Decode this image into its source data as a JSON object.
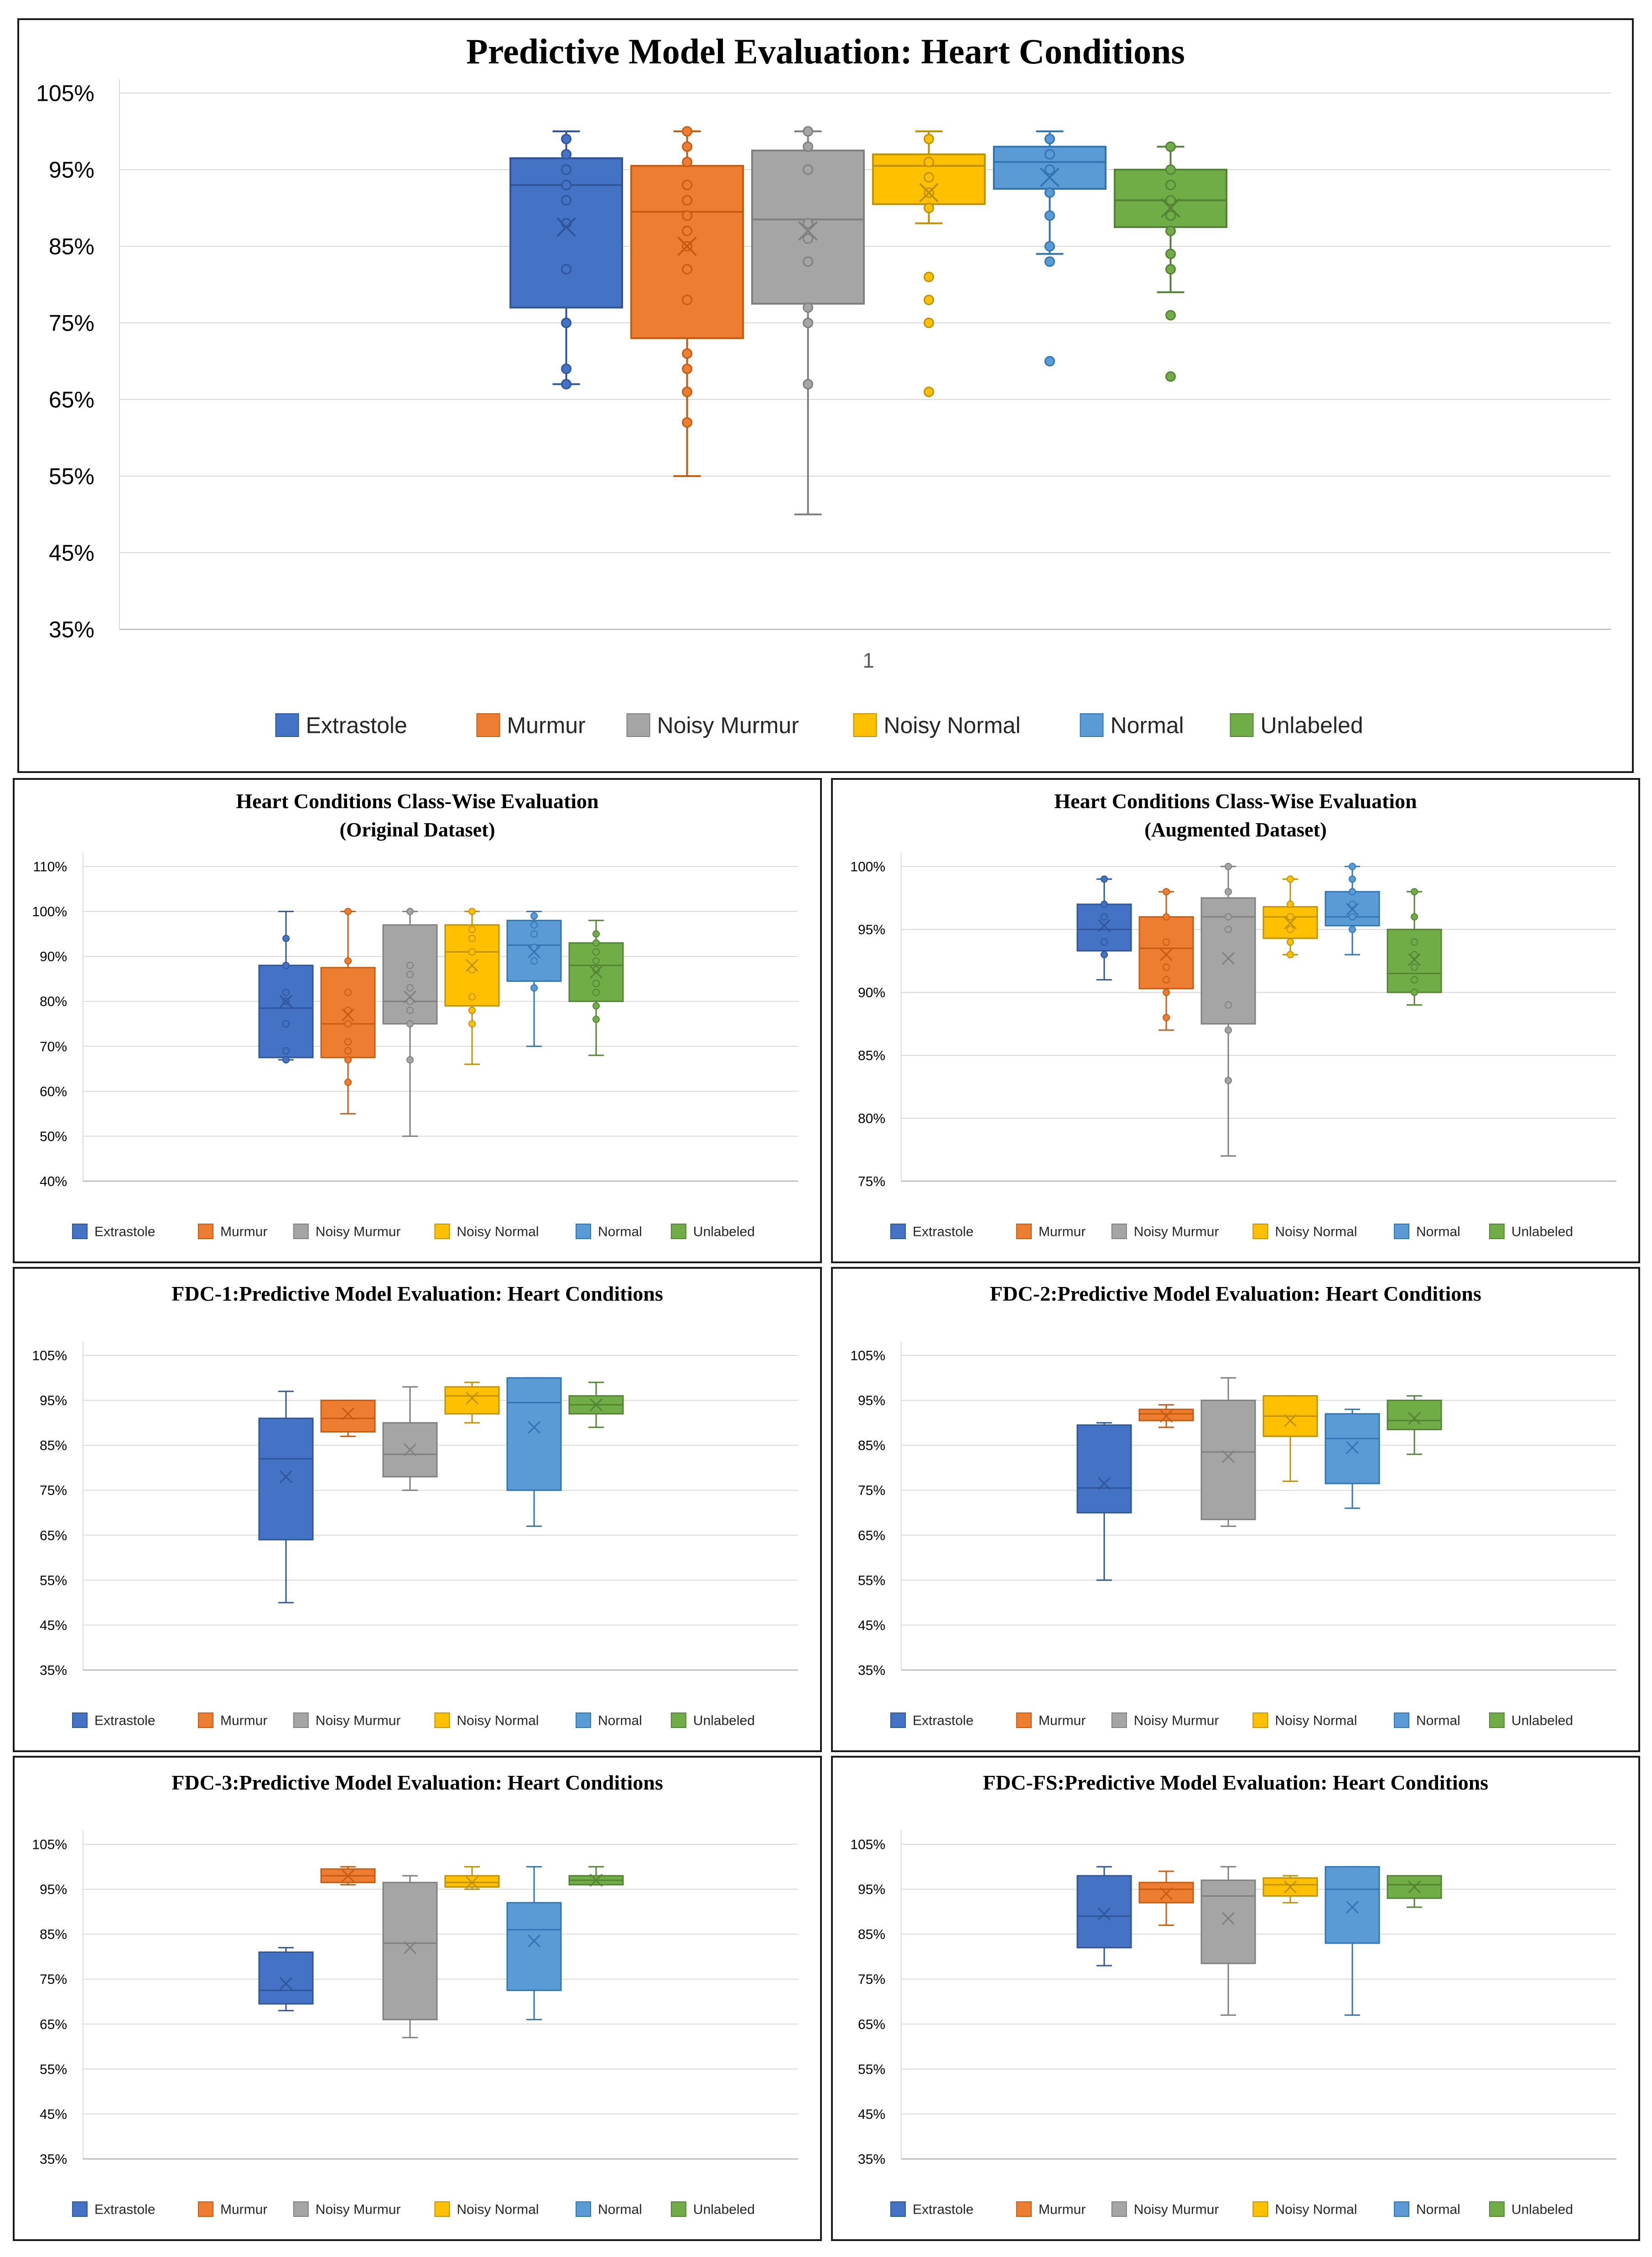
{
  "legend_labels": [
    "Extrastole",
    "Murmur",
    "Noisy Murmur",
    "Noisy Normal",
    "Normal",
    "Unlabeled"
  ],
  "colors": {
    "Extrastole": {
      "fill": "#4472c4",
      "stroke": "#2f5597"
    },
    "Murmur": {
      "fill": "#ed7d31",
      "stroke": "#c55a11"
    },
    "Noisy Murmur": {
      "fill": "#a5a5a5",
      "stroke": "#7f7f7f"
    },
    "Noisy Normal": {
      "fill": "#ffc000",
      "stroke": "#bf9000"
    },
    "Normal": {
      "fill": "#5b9bd5",
      "stroke": "#2e75b6"
    },
    "Unlabeled": {
      "fill": "#70ad47",
      "stroke": "#548235"
    }
  },
  "chart_data": [
    {
      "type": "boxplot",
      "title": "Predictive Model Evaluation: Heart Conditions",
      "x_categories": [
        "1"
      ],
      "y_ticks": [
        "35%",
        "45%",
        "55%",
        "65%",
        "75%",
        "85%",
        "95%",
        "105%"
      ],
      "ylim": [
        35,
        105
      ],
      "series": [
        {
          "name": "Extrastole",
          "min": 67,
          "q1": 77,
          "median": 93,
          "q3": 96.5,
          "max": 100,
          "mean": 87.5,
          "points": [
            67,
            69,
            75,
            82,
            88,
            91,
            93,
            95,
            97,
            99
          ]
        },
        {
          "name": "Murmur",
          "min": 55,
          "q1": 73,
          "median": 89.5,
          "q3": 95.5,
          "max": 100,
          "mean": 85,
          "points": [
            62,
            66,
            69,
            71,
            78,
            82,
            85,
            87,
            89,
            91,
            93,
            96,
            98,
            100
          ]
        },
        {
          "name": "Noisy Murmur",
          "min": 50,
          "q1": 77.5,
          "median": 88.5,
          "q3": 97.5,
          "max": 100,
          "mean": 87,
          "points": [
            67,
            75,
            77,
            83,
            86,
            88,
            95,
            98,
            100
          ]
        },
        {
          "name": "Noisy Normal",
          "min": 88,
          "q1": 90.5,
          "median": 95.5,
          "q3": 97,
          "max": 100,
          "mean": 92,
          "outliers": [
            66,
            75,
            78,
            81
          ],
          "points": [
            90,
            92,
            94,
            96,
            99
          ]
        },
        {
          "name": "Normal",
          "min": 84,
          "q1": 92.5,
          "median": 96,
          "q3": 98,
          "max": 100,
          "mean": 94,
          "outliers": [
            70,
            83
          ],
          "points": [
            85,
            89,
            92,
            95,
            97,
            99
          ]
        },
        {
          "name": "Unlabeled",
          "min": 79,
          "q1": 87.5,
          "median": 91,
          "q3": 95,
          "max": 98,
          "mean": 90,
          "outliers": [
            68,
            76
          ],
          "points": [
            82,
            84,
            87,
            89,
            91,
            93,
            95,
            98
          ]
        }
      ]
    },
    {
      "type": "boxplot",
      "title": "Heart Conditions Class-Wise Evaluation",
      "subtitle": "(Original Dataset)",
      "y_ticks": [
        "40%",
        "50%",
        "60%",
        "70%",
        "80%",
        "90%",
        "100%",
        "110%"
      ],
      "ylim": [
        40,
        110
      ],
      "series": [
        {
          "name": "Extrastole",
          "min": 67,
          "q1": 67.5,
          "median": 78.5,
          "q3": 88,
          "max": 100,
          "mean": 80,
          "points": [
            67,
            69,
            75,
            80,
            82,
            88,
            94
          ]
        },
        {
          "name": "Murmur",
          "min": 55,
          "q1": 67.5,
          "median": 75,
          "q3": 87.5,
          "max": 100,
          "mean": 77,
          "points": [
            62,
            67,
            69,
            71,
            75,
            78,
            82,
            89,
            100
          ]
        },
        {
          "name": "Noisy Murmur",
          "min": 50,
          "q1": 75,
          "median": 80,
          "q3": 97,
          "max": 100,
          "mean": 81,
          "points": [
            67,
            75,
            78,
            80,
            83,
            86,
            88,
            100
          ]
        },
        {
          "name": "Noisy Normal",
          "min": 66,
          "q1": 79,
          "median": 91,
          "q3": 97,
          "max": 100,
          "mean": 88,
          "points": [
            75,
            78,
            81,
            87,
            91,
            94,
            96,
            100
          ]
        },
        {
          "name": "Normal",
          "min": 70,
          "q1": 84.5,
          "median": 92.5,
          "q3": 98,
          "max": 100,
          "mean": 91,
          "points": [
            83,
            89,
            92,
            95,
            97,
            99
          ]
        },
        {
          "name": "Unlabeled",
          "min": 68,
          "q1": 80,
          "median": 88,
          "q3": 93,
          "max": 98,
          "mean": 86.5,
          "points": [
            76,
            79,
            82,
            84,
            87,
            89,
            91,
            93,
            95
          ]
        }
      ]
    },
    {
      "type": "boxplot",
      "title": "Heart Conditions Class-Wise Evaluation",
      "subtitle": "(Augmented Dataset)",
      "y_ticks": [
        "75%",
        "80%",
        "85%",
        "90%",
        "95%",
        "100%"
      ],
      "ylim": [
        75,
        100
      ],
      "series": [
        {
          "name": "Extrastole",
          "min": 91,
          "q1": 93.3,
          "median": 95,
          "q3": 97,
          "max": 99,
          "mean": 95.3,
          "points": [
            93,
            94,
            96,
            97,
            99
          ]
        },
        {
          "name": "Murmur",
          "min": 87,
          "q1": 90.3,
          "median": 93.5,
          "q3": 96,
          "max": 98,
          "mean": 93,
          "points": [
            88,
            90,
            91,
            92,
            94,
            96,
            98
          ]
        },
        {
          "name": "Noisy Murmur",
          "min": 77,
          "q1": 87.5,
          "median": 96,
          "q3": 97.5,
          "max": 100,
          "mean": 92.7,
          "points": [
            83,
            87,
            89,
            95,
            96,
            98,
            100
          ]
        },
        {
          "name": "Noisy Normal",
          "min": 93,
          "q1": 94.3,
          "median": 96,
          "q3": 96.8,
          "max": 99,
          "mean": 95.5,
          "points": [
            93,
            94,
            95,
            96,
            97,
            99
          ]
        },
        {
          "name": "Normal",
          "min": 93,
          "q1": 95.3,
          "median": 96,
          "q3": 98,
          "max": 100,
          "mean": 96.6,
          "points": [
            95,
            96,
            97,
            98,
            99,
            100
          ]
        },
        {
          "name": "Unlabeled",
          "min": 89,
          "q1": 90,
          "median": 91.5,
          "q3": 95,
          "max": 98,
          "mean": 92.6,
          "points": [
            90,
            91,
            92,
            93,
            94,
            96,
            98
          ]
        }
      ]
    },
    {
      "type": "boxplot",
      "title": "FDC-1:Predictive Model Evaluation: Heart Conditions",
      "y_ticks": [
        "35%",
        "45%",
        "55%",
        "65%",
        "75%",
        "85%",
        "95%",
        "105%"
      ],
      "ylim": [
        35,
        105
      ],
      "series": [
        {
          "name": "Extrastole",
          "min": 50,
          "q1": 64,
          "median": 82,
          "q3": 91,
          "max": 97,
          "mean": 78,
          "points": []
        },
        {
          "name": "Murmur",
          "min": 87,
          "q1": 88,
          "median": 91,
          "q3": 95,
          "max": 95,
          "mean": 92,
          "points": []
        },
        {
          "name": "Noisy Murmur",
          "min": 75,
          "q1": 78,
          "median": 83,
          "q3": 90,
          "max": 98,
          "mean": 84,
          "points": []
        },
        {
          "name": "Noisy Normal",
          "min": 90,
          "q1": 92,
          "median": 96,
          "q3": 98,
          "max": 99,
          "mean": 95.5,
          "points": []
        },
        {
          "name": "Normal",
          "min": 67,
          "q1": 75,
          "median": 94.5,
          "q3": 100,
          "max": 100,
          "mean": 89,
          "points": []
        },
        {
          "name": "Unlabeled",
          "min": 89,
          "q1": 92,
          "median": 94,
          "q3": 96,
          "max": 99,
          "mean": 94,
          "points": []
        }
      ]
    },
    {
      "type": "boxplot",
      "title": "FDC-2:Predictive Model Evaluation: Heart Conditions",
      "y_ticks": [
        "35%",
        "45%",
        "55%",
        "65%",
        "75%",
        "85%",
        "95%",
        "105%"
      ],
      "ylim": [
        35,
        105
      ],
      "series": [
        {
          "name": "Extrastole",
          "min": 55,
          "q1": 70,
          "median": 75.5,
          "q3": 89.5,
          "max": 90,
          "mean": 76.5,
          "points": []
        },
        {
          "name": "Murmur",
          "min": 89,
          "q1": 90.5,
          "median": 92,
          "q3": 93,
          "max": 94,
          "mean": 91.5,
          "points": []
        },
        {
          "name": "Noisy Murmur",
          "min": 67,
          "q1": 68.5,
          "median": 83.5,
          "q3": 95,
          "max": 100,
          "mean": 82.5,
          "points": []
        },
        {
          "name": "Noisy Normal",
          "min": 77,
          "q1": 87,
          "median": 91.5,
          "q3": 96,
          "max": 96,
          "mean": 90.5,
          "points": []
        },
        {
          "name": "Normal",
          "min": 71,
          "q1": 76.5,
          "median": 86.5,
          "q3": 92,
          "max": 93,
          "mean": 84.5,
          "points": []
        },
        {
          "name": "Unlabeled",
          "min": 83,
          "q1": 88.5,
          "median": 90.5,
          "q3": 95,
          "max": 96,
          "mean": 91,
          "points": []
        }
      ]
    },
    {
      "type": "boxplot",
      "title": "FDC-3:Predictive Model Evaluation: Heart Conditions",
      "y_ticks": [
        "35%",
        "45%",
        "55%",
        "65%",
        "75%",
        "85%",
        "95%",
        "105%"
      ],
      "ylim": [
        35,
        105
      ],
      "series": [
        {
          "name": "Extrastole",
          "min": 68,
          "q1": 69.5,
          "median": 72.5,
          "q3": 81,
          "max": 82,
          "mean": 74,
          "points": []
        },
        {
          "name": "Murmur",
          "min": 96,
          "q1": 96.5,
          "median": 98,
          "q3": 99.5,
          "max": 100,
          "mean": 98,
          "points": []
        },
        {
          "name": "Noisy Murmur",
          "min": 62,
          "q1": 66,
          "median": 83,
          "q3": 96.5,
          "max": 98,
          "mean": 82,
          "points": []
        },
        {
          "name": "Noisy Normal",
          "min": 95,
          "q1": 95.5,
          "median": 96.5,
          "q3": 98,
          "max": 100,
          "mean": 96.5,
          "points": []
        },
        {
          "name": "Normal",
          "min": 66,
          "q1": 72.5,
          "median": 86,
          "q3": 92,
          "max": 100,
          "mean": 83.5,
          "points": []
        },
        {
          "name": "Unlabeled",
          "min": 96,
          "q1": 96,
          "median": 97,
          "q3": 98,
          "max": 100,
          "mean": 97,
          "points": []
        }
      ]
    },
    {
      "type": "boxplot",
      "title": "FDC-FS:Predictive Model Evaluation: Heart Conditions",
      "y_ticks": [
        "35%",
        "45%",
        "55%",
        "65%",
        "75%",
        "85%",
        "95%",
        "105%"
      ],
      "ylim": [
        35,
        105
      ],
      "series": [
        {
          "name": "Extrastole",
          "min": 78,
          "q1": 82,
          "median": 89,
          "q3": 98,
          "max": 100,
          "mean": 89.5,
          "points": []
        },
        {
          "name": "Murmur",
          "min": 87,
          "q1": 92,
          "median": 95,
          "q3": 96.5,
          "max": 99,
          "mean": 94,
          "points": []
        },
        {
          "name": "Noisy Murmur",
          "min": 67,
          "q1": 78.5,
          "median": 93.5,
          "q3": 97,
          "max": 100,
          "mean": 88.5,
          "points": []
        },
        {
          "name": "Noisy Normal",
          "min": 92,
          "q1": 93.5,
          "median": 96,
          "q3": 97.5,
          "max": 98,
          "mean": 95.5,
          "points": []
        },
        {
          "name": "Normal",
          "min": 67,
          "q1": 83,
          "median": 95,
          "q3": 100,
          "max": 100,
          "mean": 91,
          "points": []
        },
        {
          "name": "Unlabeled",
          "min": 91,
          "q1": 93,
          "median": 96,
          "q3": 98,
          "max": 98,
          "mean": 95.5,
          "points": []
        }
      ]
    }
  ]
}
